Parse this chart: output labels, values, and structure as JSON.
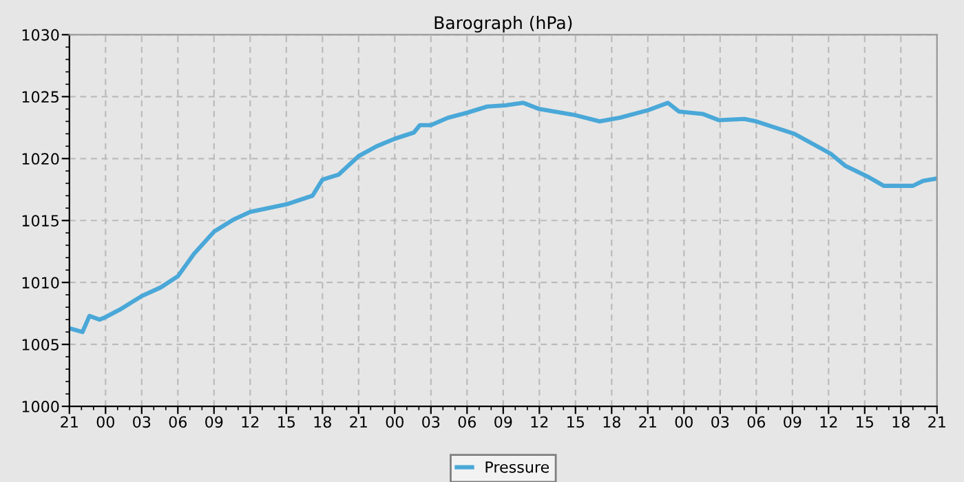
{
  "chart_data": {
    "type": "line",
    "title": "Barograph (hPa)",
    "series": [
      {
        "name": "Pressure",
        "color": "#4aa8d8",
        "x": [
          "2000-01-01T21:00",
          "2000-01-01T22:05",
          "2000-01-01T22:40",
          "2000-01-01T23:30",
          "2000-01-02T00:00",
          "2000-01-02T01:10",
          "2000-01-02T03:00",
          "2000-01-02T04:35",
          "2000-01-02T06:00",
          "2000-01-02T07:20",
          "2000-01-02T09:00",
          "2000-01-02T10:40",
          "2000-01-02T12:00",
          "2000-01-02T15:00",
          "2000-01-02T17:10",
          "2000-01-02T18:00",
          "2000-01-02T19:20",
          "2000-01-02T21:00",
          "2000-01-02T22:30",
          "2000-01-03T00:00",
          "2000-01-03T01:35",
          "2000-01-03T02:05",
          "2000-01-03T03:00",
          "2000-01-03T04:25",
          "2000-01-03T06:00",
          "2000-01-03T07:40",
          "2000-01-03T09:10",
          "2000-01-03T10:40",
          "2000-01-03T12:00",
          "2000-01-03T15:00",
          "2000-01-03T17:00",
          "2000-01-03T18:40",
          "2000-01-03T21:00",
          "2000-01-03T22:40",
          "2000-01-03T23:35",
          "2000-01-04T01:35",
          "2000-01-04T02:55",
          "2000-01-04T05:00",
          "2000-01-04T06:00",
          "2000-01-04T09:10",
          "2000-01-04T12:10",
          "2000-01-04T13:25",
          "2000-01-04T15:20",
          "2000-01-04T16:35",
          "2000-01-04T19:00",
          "2000-01-04T19:50",
          "2000-01-04T21:00"
        ],
        "values": [
          1006.3,
          1006.0,
          1007.3,
          1007.0,
          1007.2,
          1007.8,
          1008.9,
          1009.6,
          1010.5,
          1012.3,
          1014.1,
          1015.1,
          1015.7,
          1016.3,
          1017.0,
          1018.3,
          1018.7,
          1020.2,
          1021.0,
          1021.6,
          1022.1,
          1022.7,
          1022.7,
          1023.3,
          1023.7,
          1024.2,
          1024.3,
          1024.5,
          1024.0,
          1023.5,
          1023.0,
          1023.3,
          1023.9,
          1024.5,
          1023.8,
          1023.6,
          1023.1,
          1023.2,
          1023.0,
          1022.0,
          1020.4,
          1019.4,
          1018.5,
          1017.8,
          1017.8,
          1018.2,
          1018.4
        ]
      }
    ],
    "xlim": [
      "2000-01-01T21:00",
      "2000-01-04T21:00"
    ],
    "xticks": [
      {
        "value": "2000-01-01T21:00",
        "label": "21"
      },
      {
        "value": "2000-01-02T00:00",
        "label": "00"
      },
      {
        "value": "2000-01-02T03:00",
        "label": "03"
      },
      {
        "value": "2000-01-02T06:00",
        "label": "06"
      },
      {
        "value": "2000-01-02T09:00",
        "label": "09"
      },
      {
        "value": "2000-01-02T12:00",
        "label": "12"
      },
      {
        "value": "2000-01-02T15:00",
        "label": "15"
      },
      {
        "value": "2000-01-02T18:00",
        "label": "18"
      },
      {
        "value": "2000-01-02T21:00",
        "label": "21"
      },
      {
        "value": "2000-01-03T00:00",
        "label": "00"
      },
      {
        "value": "2000-01-03T03:00",
        "label": "03"
      },
      {
        "value": "2000-01-03T06:00",
        "label": "06"
      },
      {
        "value": "2000-01-03T09:00",
        "label": "09"
      },
      {
        "value": "2000-01-03T12:00",
        "label": "12"
      },
      {
        "value": "2000-01-03T15:00",
        "label": "15"
      },
      {
        "value": "2000-01-03T18:00",
        "label": "18"
      },
      {
        "value": "2000-01-03T21:00",
        "label": "21"
      },
      {
        "value": "2000-01-04T00:00",
        "label": "00"
      },
      {
        "value": "2000-01-04T03:00",
        "label": "03"
      },
      {
        "value": "2000-01-04T06:00",
        "label": "06"
      },
      {
        "value": "2000-01-04T09:00",
        "label": "09"
      },
      {
        "value": "2000-01-04T12:00",
        "label": "12"
      },
      {
        "value": "2000-01-04T15:00",
        "label": "15"
      },
      {
        "value": "2000-01-04T18:00",
        "label": "18"
      },
      {
        "value": "2000-01-04T21:00",
        "label": "21"
      }
    ],
    "ylim": [
      1000,
      1030
    ],
    "yticks": [
      1000,
      1005,
      1010,
      1015,
      1020,
      1025,
      1030
    ],
    "grid": true,
    "legend": "bottom",
    "marker": "none",
    "line_style": "solid"
  }
}
